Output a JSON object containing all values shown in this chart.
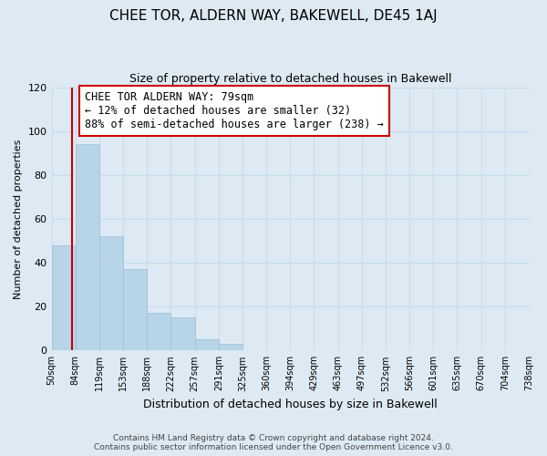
{
  "title": "CHEE TOR, ALDERN WAY, BAKEWELL, DE45 1AJ",
  "subtitle": "Size of property relative to detached houses in Bakewell",
  "xlabel": "Distribution of detached houses by size in Bakewell",
  "ylabel": "Number of detached properties",
  "bin_labels": [
    "50sqm",
    "84sqm",
    "119sqm",
    "153sqm",
    "188sqm",
    "222sqm",
    "257sqm",
    "291sqm",
    "325sqm",
    "360sqm",
    "394sqm",
    "429sqm",
    "463sqm",
    "497sqm",
    "532sqm",
    "566sqm",
    "601sqm",
    "635sqm",
    "670sqm",
    "704sqm",
    "738sqm"
  ],
  "bar_heights": [
    48,
    94,
    52,
    37,
    17,
    15,
    5,
    3,
    0,
    0,
    0,
    0,
    0,
    0,
    0,
    0,
    0,
    0,
    0,
    0
  ],
  "bar_color": "#b8d4e8",
  "bar_edge_color": "#9bbfd8",
  "ylim": [
    0,
    120
  ],
  "yticks": [
    0,
    20,
    40,
    60,
    80,
    100,
    120
  ],
  "annotation_line1": "CHEE TOR ALDERN WAY: 79sqm",
  "annotation_line2": "← 12% of detached houses are smaller (32)",
  "annotation_line3": "88% of semi-detached houses are larger (238) →",
  "annotation_box_color": "#ffffff",
  "annotation_box_edge_color": "#cc0000",
  "vline_color": "#cc0000",
  "footer_line1": "Contains HM Land Registry data © Crown copyright and database right 2024.",
  "footer_line2": "Contains public sector information licensed under the Open Government Licence v3.0.",
  "grid_color": "#c8dcea",
  "background_color": "#ddeaf4",
  "title_fontsize": 11,
  "subtitle_fontsize": 9
}
